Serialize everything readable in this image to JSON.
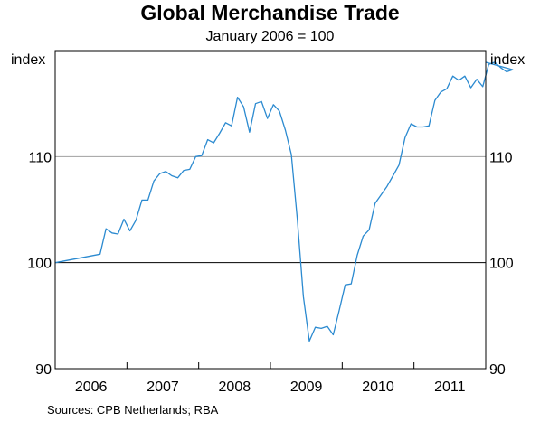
{
  "chart_data": {
    "type": "line",
    "title": "Global Merchandise Trade",
    "subtitle": "January 2006 = 100",
    "unit_label_left": "index",
    "unit_label_right": "index",
    "source": "Sources:   CPB Netherlands; RBA",
    "ylim": [
      90,
      120
    ],
    "yticks": [
      90,
      100,
      110
    ],
    "xlim": [
      2005.5,
      2011.5
    ],
    "year_labels": [
      {
        "label": "2006",
        "mid": 2006.0
      },
      {
        "label": "2007",
        "mid": 2007.0
      },
      {
        "label": "2008",
        "mid": 2008.0
      },
      {
        "label": "2009",
        "mid": 2009.0
      },
      {
        "label": "2010",
        "mid": 2010.0
      },
      {
        "label": "2011",
        "mid": 2011.0
      }
    ],
    "year_boundaries": [
      2006.5,
      2007.5,
      2008.5,
      2009.5,
      2010.5
    ],
    "reference_lines": [
      {
        "value": 100,
        "color": "#000000"
      },
      {
        "value": 110,
        "color": "#a0a0a0"
      }
    ],
    "series": [
      {
        "color": "#2b8ad0",
        "x": [
          "2006-01",
          "2006-02",
          "2006-03",
          "2006-04",
          "2006-05",
          "2006-06",
          "2006-07",
          "2006-08",
          "2006-09",
          "2006-10",
          "2006-11",
          "2006-12",
          "2007-01",
          "2007-02",
          "2007-03",
          "2007-04",
          "2007-05",
          "2007-06",
          "2007-07",
          "2007-08",
          "2007-09",
          "2007-10",
          "2007-11",
          "2007-12",
          "2008-01",
          "2008-02",
          "2008-03",
          "2008-04",
          "2008-05",
          "2008-06",
          "2008-07",
          "2008-08",
          "2008-09",
          "2008-10",
          "2008-11",
          "2008-12",
          "2009-01",
          "2009-02",
          "2009-03",
          "2009-04",
          "2009-05",
          "2009-06",
          "2009-07",
          "2009-08",
          "2009-09",
          "2009-10",
          "2009-11",
          "2009-12",
          "2010-01",
          "2010-02",
          "2010-03",
          "2010-04",
          "2010-05",
          "2010-06",
          "2010-07",
          "2010-08",
          "2010-09",
          "2010-10",
          "2010-11",
          "2010-12",
          "2011-01",
          "2011-02",
          "2011-03",
          "2011-04",
          "2011-05",
          "2011-06",
          "2011-07",
          "2011-08",
          "2011-09",
          "2011-10",
          "2011-11",
          "2011-12"
        ],
        "y": [
          100.0,
          100.8,
          103.2,
          102.8,
          102.7,
          104.1,
          103.0,
          104.0,
          105.9,
          105.9,
          107.7,
          108.4,
          108.6,
          108.2,
          108.0,
          108.7,
          108.8,
          110.0,
          110.1,
          111.6,
          111.3,
          112.2,
          113.2,
          112.9,
          115.6,
          114.7,
          112.3,
          115.0,
          115.2,
          113.6,
          114.9,
          114.3,
          112.5,
          110.2,
          104.0,
          96.8,
          92.6,
          93.9,
          93.8,
          94.0,
          93.2,
          95.5,
          97.9,
          98.0,
          100.7,
          102.5,
          103.1,
          105.6,
          106.4,
          107.2,
          108.2,
          109.2,
          111.8,
          113.1,
          112.8,
          112.8,
          112.9,
          115.3,
          116.1,
          116.4,
          117.6,
          117.2,
          117.6,
          116.5,
          117.3,
          116.6,
          118.7,
          118.9,
          118.4,
          118.0,
          118.2,
          118.9
        ]
      }
    ]
  }
}
